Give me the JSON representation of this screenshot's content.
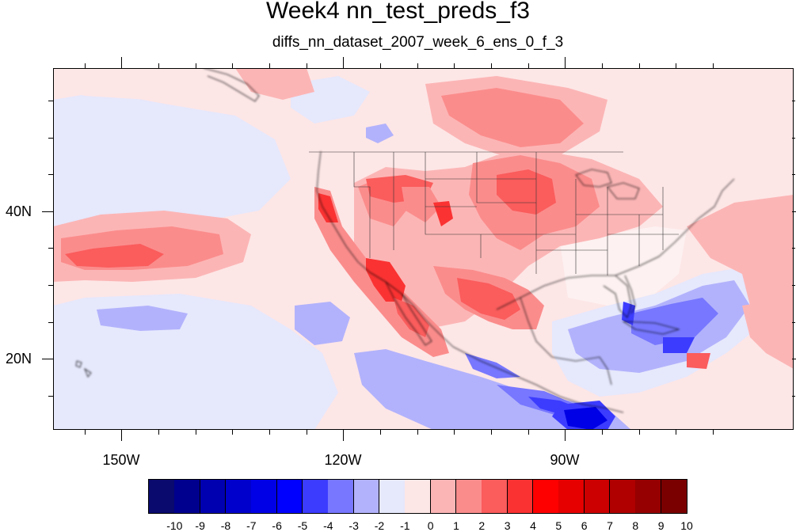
{
  "title": "Week4 nn_test_preds_f3",
  "subtitle": "diffs_nn_dataset_2007_week_6_ens_0_f_3",
  "map": {
    "longitude_labels": [
      "150W",
      "120W",
      "90W"
    ],
    "latitude_labels": [
      "40N",
      "20N"
    ]
  },
  "colorbar": {
    "labels": [
      "-10",
      "-9",
      "-8",
      "-7",
      "-6",
      "-5",
      "-4",
      "-3",
      "-2",
      "-1",
      "0",
      "1",
      "2",
      "3",
      "4",
      "5",
      "6",
      "7",
      "8",
      "9",
      "10"
    ],
    "colors": [
      "#0a0a6e",
      "#00008e",
      "#0000b0",
      "#0000cc",
      "#0000e6",
      "#0000ff",
      "#3c3cff",
      "#7777ff",
      "#b2b2fc",
      "#e6e8fc",
      "#fde6e6",
      "#fcb5b5",
      "#fb8c8c",
      "#fb5c5c",
      "#fb3232",
      "#ff0000",
      "#e60000",
      "#cc0000",
      "#b00000",
      "#960000",
      "#7a0000"
    ]
  }
}
